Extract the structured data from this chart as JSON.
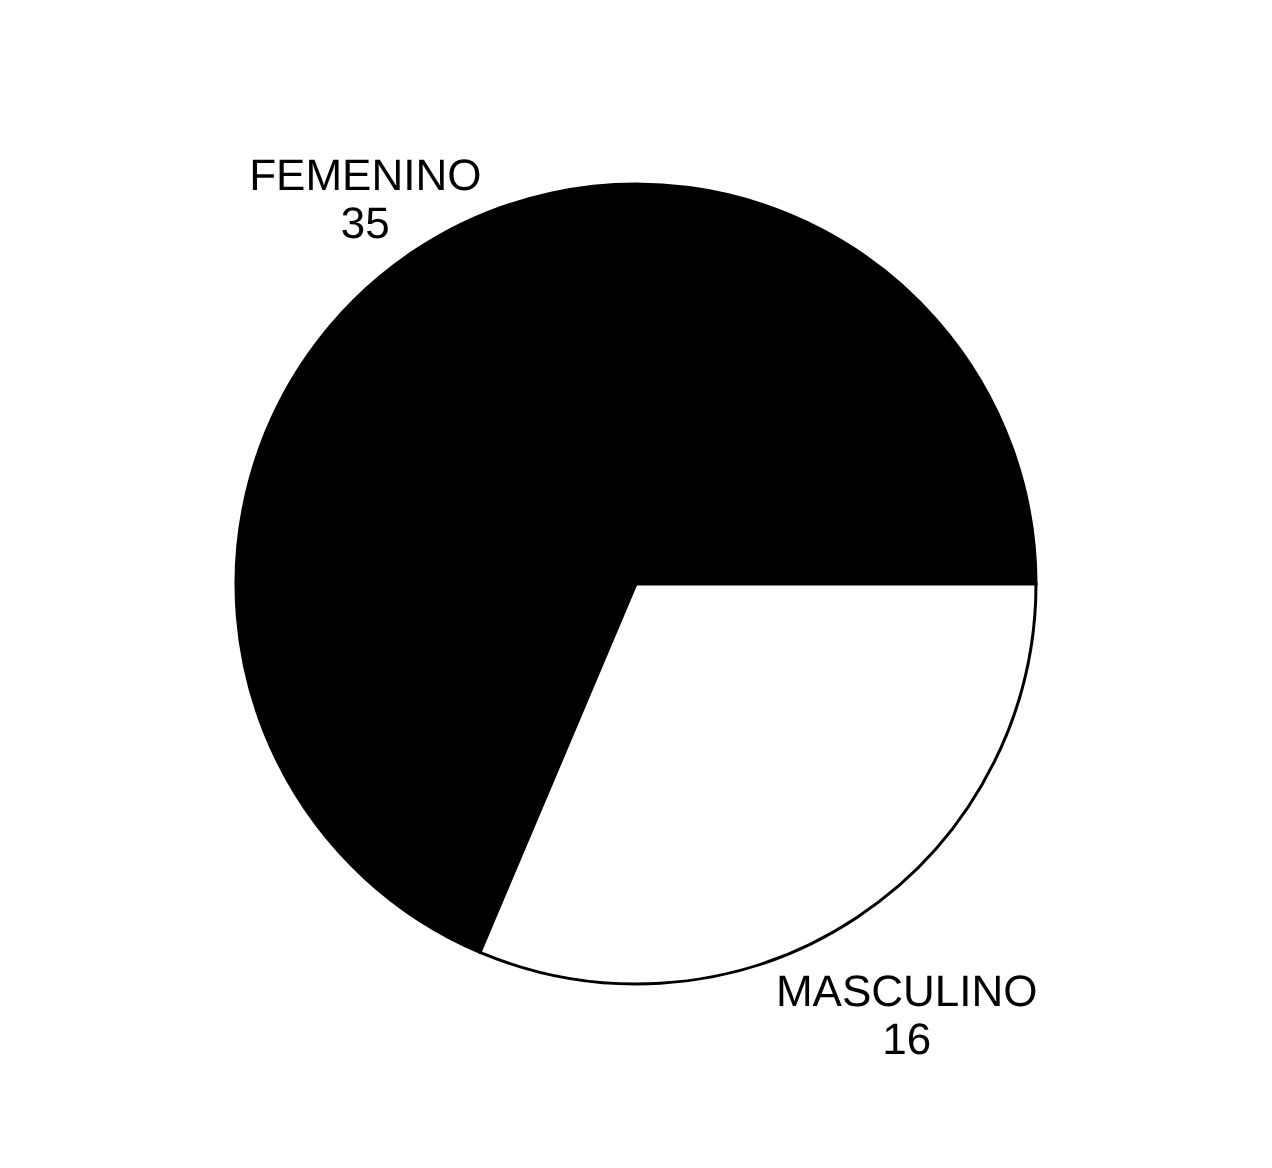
{
  "chart_data": {
    "type": "pie",
    "categories": [
      "FEMENINO",
      "MASCULINO"
    ],
    "values": [
      35,
      16
    ],
    "colors": [
      "#000000",
      "#ffffff"
    ],
    "data_labels": true,
    "legend": false
  }
}
